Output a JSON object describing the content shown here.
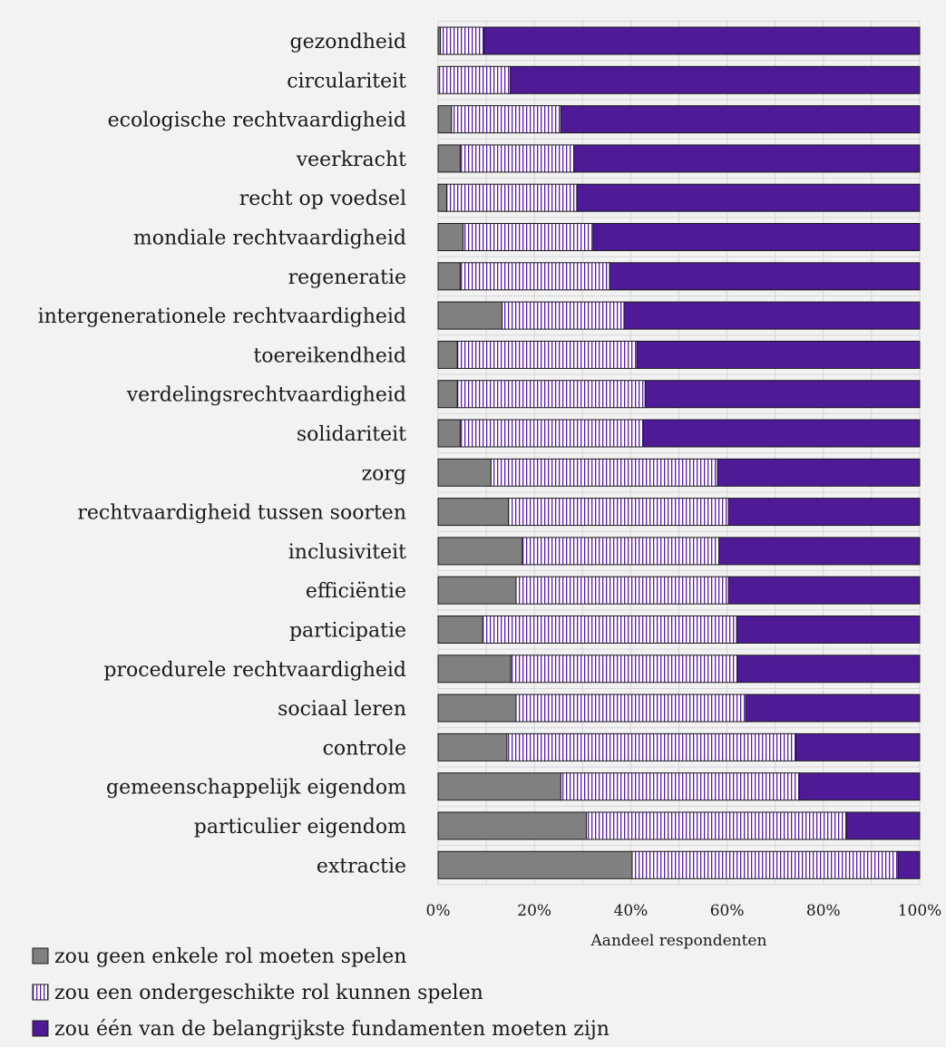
{
  "chart_data": {
    "type": "bar",
    "orientation": "horizontal",
    "stacked": true,
    "percent": true,
    "xlabel": "Aandeel respondenten",
    "ylabel": "",
    "xlim": [
      0,
      100
    ],
    "xticks": [
      "0%",
      "20%",
      "40%",
      "60%",
      "80%",
      "100%"
    ],
    "grid": true,
    "legend_position": "bottom-left",
    "categories": [
      "gezondheid",
      "circulariteit",
      "ecologische rechtvaardigheid",
      "veerkracht",
      "recht op voedsel",
      "mondiale rechtvaardigheid",
      "regeneratie",
      "intergenerationele rechtvaardigheid",
      "toereikendheid",
      "verdelingsrechtvaardigheid",
      "solidariteit",
      "zorg",
      "rechtvaardigheid tussen soorten",
      "inclusiviteit",
      "efficiëntie",
      "participatie",
      "procedurele rechtvaardigheid",
      "sociaal leren",
      "controle",
      "gemeenschappelijk eigendom",
      "particulier eigendom",
      "extractie"
    ],
    "series": [
      {
        "name": "zou geen enkele rol moeten spelen",
        "color": "#808080",
        "pattern": "solid",
        "values": [
          0.5,
          0,
          2.8,
          4.6,
          1.8,
          5.2,
          4.6,
          13.3,
          4.0,
          4.0,
          4.6,
          11.0,
          14.6,
          17.5,
          16.2,
          9.3,
          15.1,
          16.2,
          14.3,
          25.5,
          30.8,
          40.3
        ]
      },
      {
        "name": "zou een ondergeschikte rol kunnen spelen",
        "color": "#5b1d9c",
        "pattern": "vertical-stripes",
        "values": [
          9.0,
          15.0,
          22.7,
          23.6,
          27.0,
          27.0,
          31.0,
          25.3,
          37.3,
          39.0,
          38.0,
          47.0,
          45.7,
          40.8,
          44.1,
          52.7,
          47.0,
          47.7,
          60.0,
          49.5,
          54.0,
          55.2
        ]
      },
      {
        "name": "zou één van de belangrijkste fundamenten moeten zijn",
        "color": "#4f1a96",
        "pattern": "solid",
        "values": [
          90.5,
          85.0,
          74.5,
          71.8,
          71.2,
          67.8,
          64.4,
          61.4,
          58.7,
          57.0,
          57.4,
          42.0,
          39.7,
          41.7,
          39.7,
          38.0,
          37.9,
          36.1,
          25.7,
          25.0,
          15.2,
          4.5
        ]
      }
    ]
  }
}
